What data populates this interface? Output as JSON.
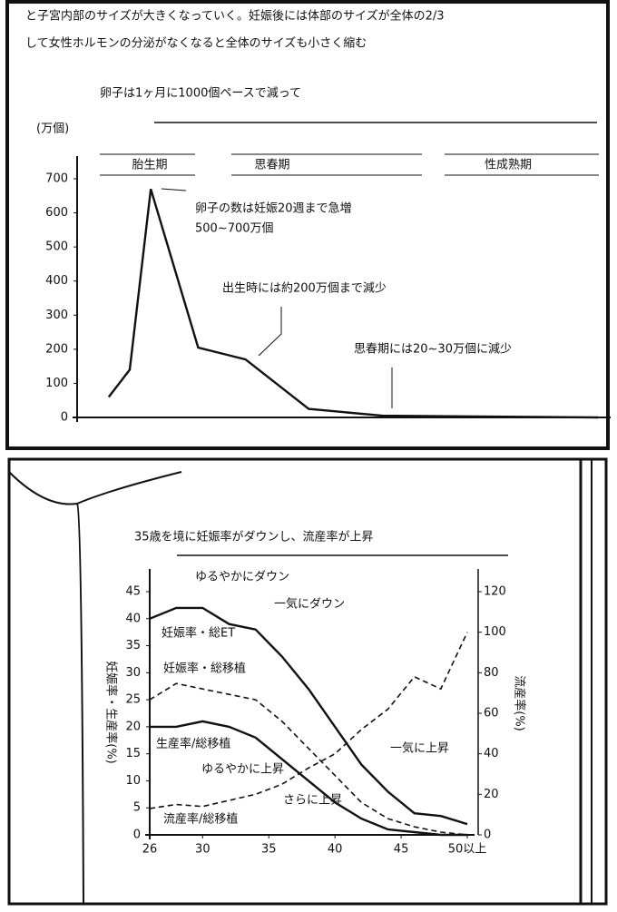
{
  "chart_data": [
    {
      "type": "line",
      "text_lines": [
        "と子宮内部のサイズが大きくなっていく。妊娠後には体部のサイズが全体の2/3",
        "して女性ホルモンの分泌がなくなると全体のサイズも小さく縮む"
      ],
      "title": "卵子は1ヶ月に1000個ペースで減って",
      "y_label": "(万個)",
      "phases": [
        "胎生期",
        "思春期",
        "性成熟期"
      ],
      "annotations": [
        "卵子の数は妊娠20週まで急増",
        "500~700万個",
        "出生時には約200万個まで減少",
        "思春期には20~30万個に減少"
      ],
      "x": [
        6,
        10,
        14,
        23,
        32,
        44,
        58,
        99
      ],
      "values": [
        60,
        140,
        670,
        205,
        170,
        25,
        5,
        0
      ],
      "color": "#111111",
      "xlim": [
        0,
        100
      ],
      "ylim": [
        0,
        700
      ],
      "yticks": [
        0,
        100,
        200,
        300,
        400,
        500,
        600,
        700
      ]
    },
    {
      "type": "line",
      "title": "35歳を境に妊娠率がダウンし、流産率が上昇",
      "y_label": "妊娠率・生産率(%)",
      "y2_label": "流産率(%)",
      "annotations": [
        "ゆるやかにダウン",
        "一気にダウン",
        "ゆるやかに上昇",
        "一気に上昇",
        "さらに上昇"
      ],
      "x": [
        26,
        28,
        30,
        32,
        34,
        36,
        38,
        40,
        42,
        44,
        46,
        48,
        50
      ],
      "xlim": [
        26,
        50
      ],
      "xticks": [
        26,
        30,
        35,
        40,
        45,
        {
          "value": 50,
          "label": "50以上"
        }
      ],
      "ylim": [
        0,
        45
      ],
      "yticks": [
        0,
        5,
        10,
        15,
        20,
        25,
        30,
        35,
        40,
        45
      ],
      "y2lim": [
        0,
        120
      ],
      "y2ticks": [
        0,
        20,
        40,
        60,
        80,
        100,
        120
      ],
      "series": [
        {
          "name": "妊娠率・総ET",
          "color": "#111111",
          "style": "solid",
          "values": [
            40,
            42,
            42,
            39,
            38,
            33,
            27,
            20,
            13,
            8,
            4,
            3.5,
            2
          ]
        },
        {
          "name": "妊娠率・総移植",
          "color": "#111111",
          "style": "dashed",
          "values": [
            25,
            28,
            27,
            26,
            25,
            21,
            16,
            11,
            6,
            3,
            1.5,
            0.5,
            0
          ]
        },
        {
          "name": "生産率/総移植",
          "color": "#111111",
          "style": "solid",
          "values": [
            20,
            20,
            21,
            20,
            18,
            14,
            10,
            6,
            3,
            1,
            0.5,
            0,
            0
          ]
        },
        {
          "name": "流産率/総移植",
          "color": "#111111",
          "style": "dashed",
          "axis": "y2",
          "values": [
            13,
            15,
            14,
            17,
            20,
            25,
            33,
            40,
            52,
            62,
            78,
            72,
            100
          ]
        }
      ]
    }
  ]
}
